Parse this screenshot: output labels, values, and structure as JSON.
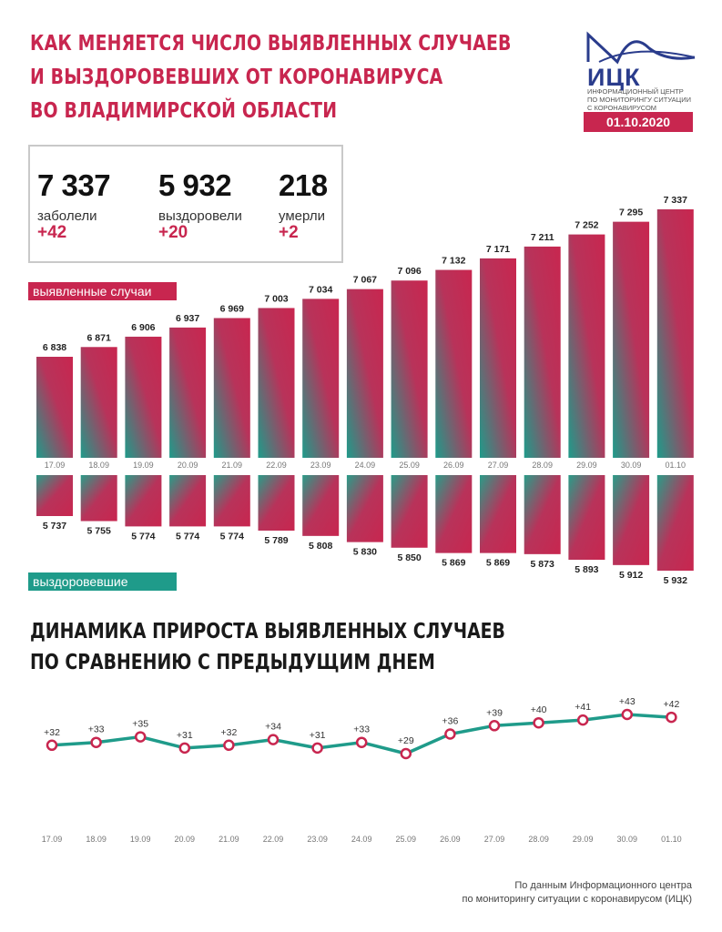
{
  "header": {
    "title_lines": [
      "КАК МЕНЯЕТСЯ ЧИСЛО ВЫЯВЛЕННЫХ СЛУЧАЕВ",
      "И ВЫЗДОРОВЕВШИХ ОТ КОРОНАВИРУСА",
      "ВО ВЛАДИМИРСКОЙ ОБЛАСТИ"
    ],
    "logo_text": "ИЦК",
    "logo_sub_lines": [
      "ИНФОРМАЦИОННЫЙ ЦЕНТР",
      "ПО МОНИТОРИНГУ СИТУАЦИИ",
      "С КОРОНАВИРУСОМ"
    ],
    "date": "01.10.2020"
  },
  "stats": [
    {
      "value": "7 337",
      "label": "заболели",
      "delta": "+42"
    },
    {
      "value": "5 932",
      "label": "выздоровели",
      "delta": "+20"
    },
    {
      "value": "218",
      "label": "умерли",
      "delta": "+2"
    }
  ],
  "labels": {
    "cases": "выявленные случаи",
    "recovered": "выздоровевшие"
  },
  "section2_title_lines": [
    "ДИНАМИКА ПРИРОСТА ВЫЯВЛЕННЫХ СЛУЧАЕВ",
    "ПО СРАВНЕНИЮ С ПРЕДЫДУЩИМ ДНЕМ"
  ],
  "footer_lines": [
    "По данным Информационного центра",
    "по мониторингу ситуации с коронавирусом (ИЦК)"
  ],
  "colors": {
    "accent": "#c8264f",
    "teal": "#1f9b8a",
    "logo": "#2a3c8c"
  },
  "chart_data": [
    {
      "type": "bar",
      "categories": [
        "17.09",
        "18.09",
        "19.09",
        "20.09",
        "21.09",
        "22.09",
        "23.09",
        "24.09",
        "25.09",
        "26.09",
        "27.09",
        "28.09",
        "29.09",
        "30.09",
        "01.10"
      ],
      "values": [
        6838,
        6871,
        6906,
        6937,
        6969,
        7003,
        7034,
        7067,
        7096,
        7132,
        7171,
        7211,
        7252,
        7295,
        7337
      ],
      "value_labels": [
        "6 838",
        "6 871",
        "6 906",
        "6 937",
        "6 969",
        "7 003",
        "7 034",
        "7 067",
        "7 096",
        "7 132",
        "7 171",
        "7 211",
        "7 252",
        "7 295",
        "7 337"
      ],
      "title": "выявленные случаи"
    },
    {
      "type": "bar",
      "categories": [
        "17.09",
        "18.09",
        "19.09",
        "20.09",
        "21.09",
        "22.09",
        "23.09",
        "24.09",
        "25.09",
        "26.09",
        "27.09",
        "28.09",
        "29.09",
        "30.09",
        "01.10"
      ],
      "values": [
        5737,
        5755,
        5774,
        5774,
        5774,
        5789,
        5808,
        5830,
        5850,
        5869,
        5869,
        5873,
        5893,
        5912,
        5932
      ],
      "value_labels": [
        "5 737",
        "5 755",
        "5 774",
        "5 774",
        "5 774",
        "5 789",
        "5 808",
        "5 830",
        "5 850",
        "5 869",
        "5 869",
        "5 873",
        "5 893",
        "5 912",
        "5 932"
      ],
      "title": "выздоровевшие"
    },
    {
      "type": "line",
      "categories": [
        "17.09",
        "18.09",
        "19.09",
        "20.09",
        "21.09",
        "22.09",
        "23.09",
        "24.09",
        "25.09",
        "26.09",
        "27.09",
        "28.09",
        "29.09",
        "30.09",
        "01.10"
      ],
      "values": [
        32,
        33,
        35,
        31,
        32,
        34,
        31,
        33,
        29,
        36,
        39,
        40,
        41,
        43,
        42
      ],
      "value_labels": [
        "+32",
        "+33",
        "+35",
        "+31",
        "+32",
        "+34",
        "+31",
        "+33",
        "+29",
        "+36",
        "+39",
        "+40",
        "+41",
        "+43",
        "+42"
      ],
      "title": "ДИНАМИКА ПРИРОСТА ВЫЯВЛЕННЫХ СЛУЧАЕВ ПО СРАВНЕНИЮ С ПРЕДЫДУЩИМ ДНЕМ"
    }
  ]
}
